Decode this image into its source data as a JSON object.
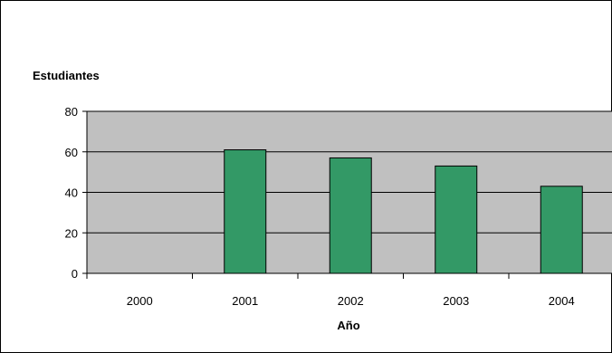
{
  "chart_data": {
    "type": "bar",
    "ylabel": "Estudiantes",
    "xlabel": "Año",
    "categories": [
      "2000",
      "2001",
      "2002",
      "2003",
      "2004"
    ],
    "values": [
      0,
      61,
      57,
      53,
      43
    ],
    "ylim": [
      0,
      80
    ],
    "yticks": [
      0,
      20,
      40,
      60,
      80
    ],
    "grid": true,
    "legend": "none",
    "colors": {
      "bar": "#339966",
      "bar_outline": "#000000",
      "plot_background": "#c0c0c0",
      "gridline": "#000000"
    }
  }
}
